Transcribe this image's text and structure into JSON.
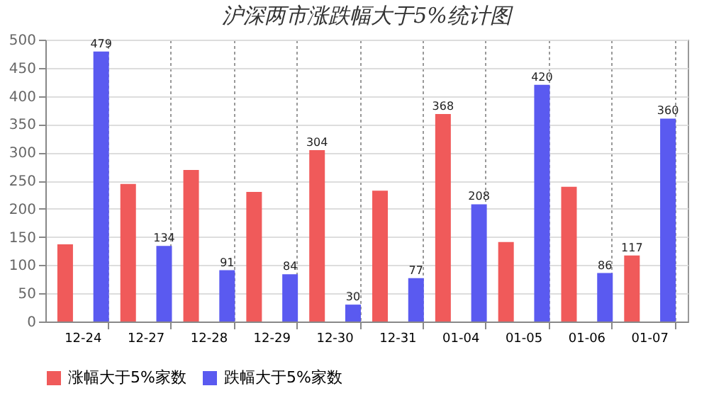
{
  "chart_data": {
    "type": "bar",
    "title": "沪深两市涨跌幅大于5%统计图",
    "categories": [
      "12-24",
      "12-27",
      "12-28",
      "12-29",
      "12-30",
      "12-31",
      "01-04",
      "01-05",
      "01-06",
      "01-07"
    ],
    "series": [
      {
        "name": "涨幅大于5%家数",
        "color": "#f05a5a",
        "values": [
          137,
          244,
          269,
          230,
          304,
          232,
          368,
          141,
          239,
          117
        ],
        "value_labels": [
          null,
          null,
          null,
          null,
          "304",
          null,
          "368",
          null,
          null,
          "117"
        ]
      },
      {
        "name": "跌幅大于5%家数",
        "color": "#5a5af0",
        "values": [
          479,
          134,
          91,
          84,
          30,
          77,
          208,
          420,
          86,
          360
        ],
        "value_labels": [
          "479",
          "134",
          "91",
          "84",
          "30",
          "77",
          "208",
          "420",
          "86",
          "360"
        ]
      }
    ],
    "ylim": [
      0,
      500
    ],
    "yticks": [
      0,
      50,
      100,
      150,
      200,
      250,
      300,
      350,
      400,
      450,
      500
    ],
    "grid": true,
    "legend": "bottom"
  }
}
